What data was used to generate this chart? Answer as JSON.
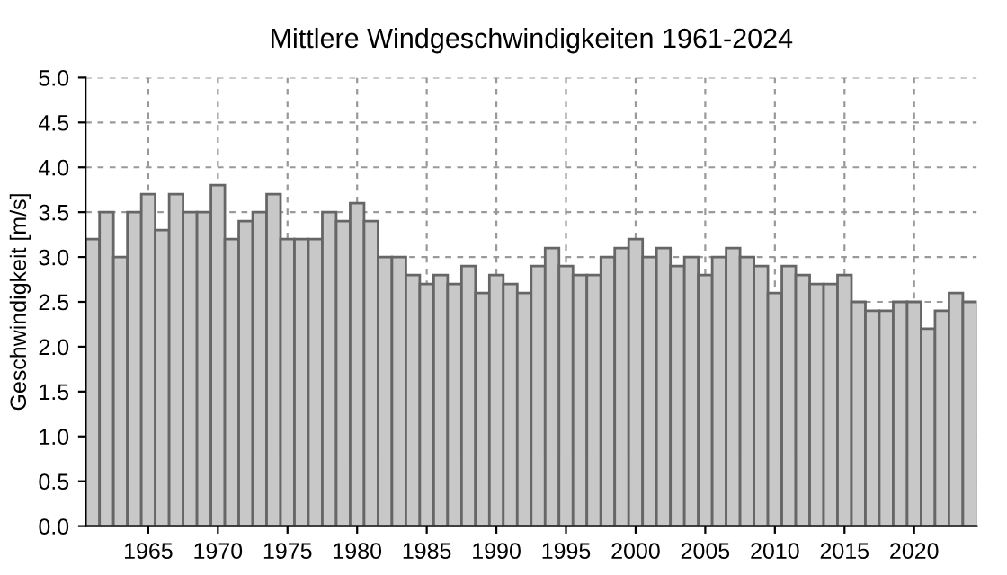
{
  "chart_data": {
    "type": "bar",
    "title": "Mittlere Windgeschwindigkeiten 1961-2024",
    "ylabel": "Geschwindigkeit [m/s]",
    "x": [
      1961,
      1962,
      1963,
      1964,
      1965,
      1966,
      1967,
      1968,
      1969,
      1970,
      1971,
      1972,
      1973,
      1974,
      1975,
      1976,
      1977,
      1978,
      1979,
      1980,
      1981,
      1982,
      1983,
      1984,
      1985,
      1986,
      1987,
      1988,
      1989,
      1990,
      1991,
      1992,
      1993,
      1994,
      1995,
      1996,
      1997,
      1998,
      1999,
      2000,
      2001,
      2002,
      2003,
      2004,
      2005,
      2006,
      2007,
      2008,
      2009,
      2010,
      2011,
      2012,
      2013,
      2014,
      2015,
      2016,
      2017,
      2018,
      2019,
      2020,
      2021,
      2022,
      2023,
      2024
    ],
    "values": [
      3.2,
      3.5,
      3.0,
      3.5,
      3.7,
      3.3,
      3.7,
      3.5,
      3.5,
      3.8,
      3.2,
      3.4,
      3.5,
      3.7,
      3.2,
      3.2,
      3.2,
      3.5,
      3.4,
      3.6,
      3.4,
      3.0,
      3.0,
      2.8,
      2.7,
      2.8,
      2.7,
      2.9,
      2.6,
      2.8,
      2.7,
      2.6,
      2.9,
      3.1,
      2.9,
      2.8,
      2.8,
      3.0,
      3.1,
      3.2,
      3.0,
      3.1,
      2.9,
      3.0,
      2.8,
      3.0,
      3.1,
      3.0,
      2.9,
      2.6,
      2.9,
      2.8,
      2.7,
      2.7,
      2.8,
      2.5,
      2.4,
      2.4,
      2.5,
      2.5,
      2.2,
      2.4,
      2.6,
      2.5
    ],
    "color": "#c8c8c8",
    "xlim": [
      1960.5,
      2024.5
    ],
    "xticks": [
      1965,
      1970,
      1975,
      1980,
      1985,
      1990,
      1995,
      2000,
      2005,
      2010,
      2015,
      2020
    ],
    "ylim": [
      0,
      5
    ],
    "yticks": [
      {
        "value": 0,
        "label": "0.0"
      },
      {
        "value": 0.5,
        "label": "0.5"
      },
      {
        "value": 1,
        "label": "1.0"
      },
      {
        "value": 1.5,
        "label": "1.5"
      },
      {
        "value": 2,
        "label": "2.0"
      },
      {
        "value": 2.5,
        "label": "2.5"
      },
      {
        "value": 3,
        "label": "3.0"
      },
      {
        "value": 3.5,
        "label": "3.5"
      },
      {
        "value": 4,
        "label": "4.0"
      },
      {
        "value": 4.5,
        "label": "4.5"
      },
      {
        "value": 5,
        "label": "5.0"
      }
    ],
    "grid": true
  }
}
